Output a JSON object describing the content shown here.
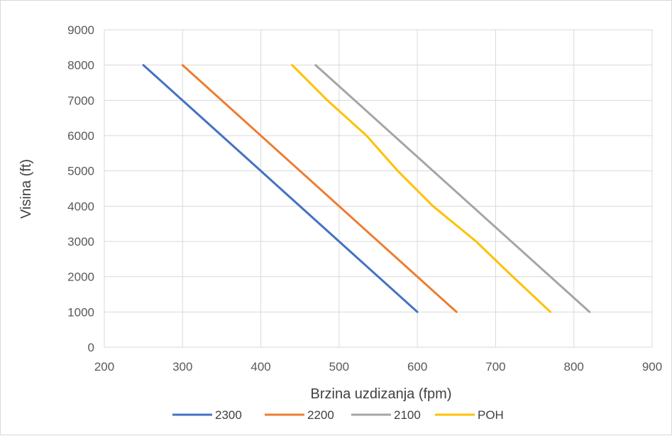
{
  "chart_data": {
    "type": "line",
    "title": "",
    "xlabel": "Brzina uzdizanja (fpm)",
    "ylabel": "Visina (ft)",
    "xlim": [
      200,
      900
    ],
    "ylim": [
      0,
      9000
    ],
    "xticks": [
      200,
      300,
      400,
      500,
      600,
      700,
      800,
      900
    ],
    "yticks": [
      0,
      1000,
      2000,
      3000,
      4000,
      5000,
      6000,
      7000,
      8000,
      9000
    ],
    "grid": true,
    "legend_position": "bottom",
    "series": [
      {
        "name": "2300",
        "color": "#4472C4",
        "points": [
          [
            250,
            8000
          ],
          [
            600,
            1000
          ]
        ]
      },
      {
        "name": "2200",
        "color": "#ED7D31",
        "points": [
          [
            300,
            8000
          ],
          [
            650,
            1000
          ]
        ]
      },
      {
        "name": "2100",
        "color": "#A5A5A5",
        "points": [
          [
            470,
            8000
          ],
          [
            820,
            1000
          ]
        ]
      },
      {
        "name": "POH",
        "color": "#FFC000",
        "points": [
          [
            440,
            8000
          ],
          [
            485,
            7000
          ],
          [
            535,
            6000
          ],
          [
            575,
            5000
          ],
          [
            620,
            4000
          ],
          [
            675,
            3000
          ],
          [
            722,
            2000
          ],
          [
            770,
            1000
          ]
        ]
      }
    ]
  }
}
